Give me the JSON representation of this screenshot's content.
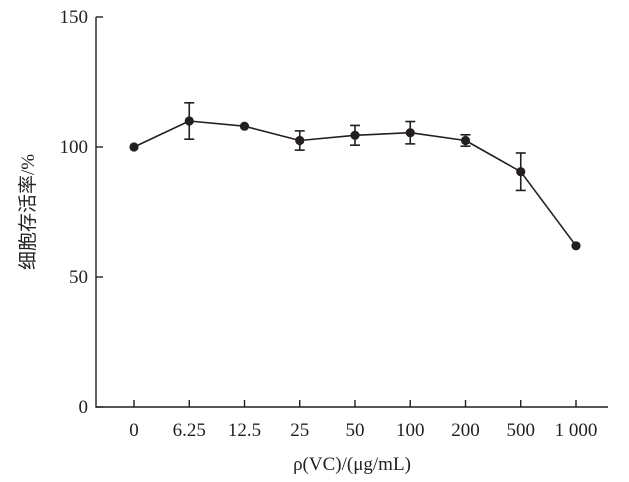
{
  "chart_data": {
    "type": "line",
    "title": "",
    "xlabel": "ρ(VC)/(μg/mL)",
    "ylabel": "细胞存活率/%",
    "categories": [
      "0",
      "6.25",
      "12.5",
      "25",
      "50",
      "100",
      "200",
      "500",
      "1 000"
    ],
    "ylim": [
      0,
      150
    ],
    "yticks": [
      0,
      50,
      100,
      150
    ],
    "grid": false,
    "legend": "none",
    "series": [
      {
        "values": [
          100,
          110,
          108,
          102.5,
          104.5,
          105.5,
          102.5,
          90.5,
          62
        ],
        "errors": [
          0,
          7,
          0,
          3.7,
          3.8,
          4.3,
          2.2,
          7.2,
          0
        ]
      }
    ],
    "colors": {
      "line": "#231f20",
      "marker": "#231f20",
      "axis": "#231f20"
    }
  }
}
